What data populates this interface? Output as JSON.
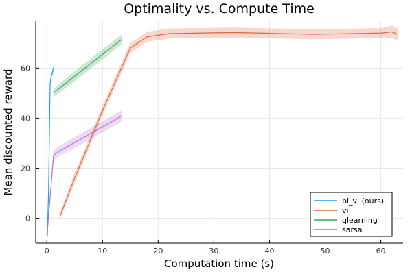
{
  "chart_data": {
    "type": "line",
    "title": "Optimality vs. Compute Time",
    "xlabel": "Computation time (s)",
    "ylabel": "Mean discounted reward",
    "xlim": [
      -2,
      64
    ],
    "ylim": [
      -10,
      79
    ],
    "x_ticks": [
      0,
      10,
      20,
      30,
      40,
      50,
      60
    ],
    "y_ticks": [
      0,
      20,
      40,
      60
    ],
    "grid": true,
    "legend_position": "bottom-right",
    "series": [
      {
        "name": "bl_vi (ours)",
        "color": "#1f9ef0",
        "x": [
          0.1,
          0.3,
          0.6,
          0.8,
          1.0,
          1.2
        ],
        "y": [
          -7,
          10,
          54,
          57,
          58,
          60
        ],
        "band": [
          1.5,
          1.5,
          1.5,
          1.5,
          1.5,
          1.5
        ]
      },
      {
        "name": "vi",
        "color": "#e2653a",
        "x": [
          2.4,
          5,
          10,
          15,
          18,
          22,
          30,
          34,
          40,
          48,
          55,
          60,
          62,
          63
        ],
        "y": [
          1,
          16,
          43,
          68,
          72.5,
          73.8,
          74.1,
          74.2,
          73.9,
          73.5,
          73.8,
          74,
          74.5,
          73.5
        ],
        "band": [
          1.5,
          2,
          2,
          2,
          2,
          2,
          2,
          2,
          2,
          2,
          2,
          2,
          2.5,
          2.5
        ]
      },
      {
        "name": "qlearning",
        "color": "#3aa55d",
        "x": [
          1.2,
          2,
          4,
          6,
          8,
          10,
          12,
          13.5
        ],
        "y": [
          50,
          51.5,
          55,
          58.5,
          62,
          65.5,
          69,
          71.5
        ],
        "band": [
          1.5,
          1.8,
          2,
          2,
          2,
          2,
          2,
          2
        ]
      },
      {
        "name": "sarsa",
        "color": "#b870d1",
        "x": [
          0.1,
          1.2,
          2,
          4,
          6,
          8,
          10,
          12,
          13.5
        ],
        "y": [
          -5,
          25,
          26.5,
          29,
          31.5,
          34,
          36.5,
          39,
          41
        ],
        "band": [
          2,
          2,
          2,
          2.2,
          2.2,
          2.2,
          2.2,
          2.2,
          2.2
        ]
      }
    ]
  }
}
